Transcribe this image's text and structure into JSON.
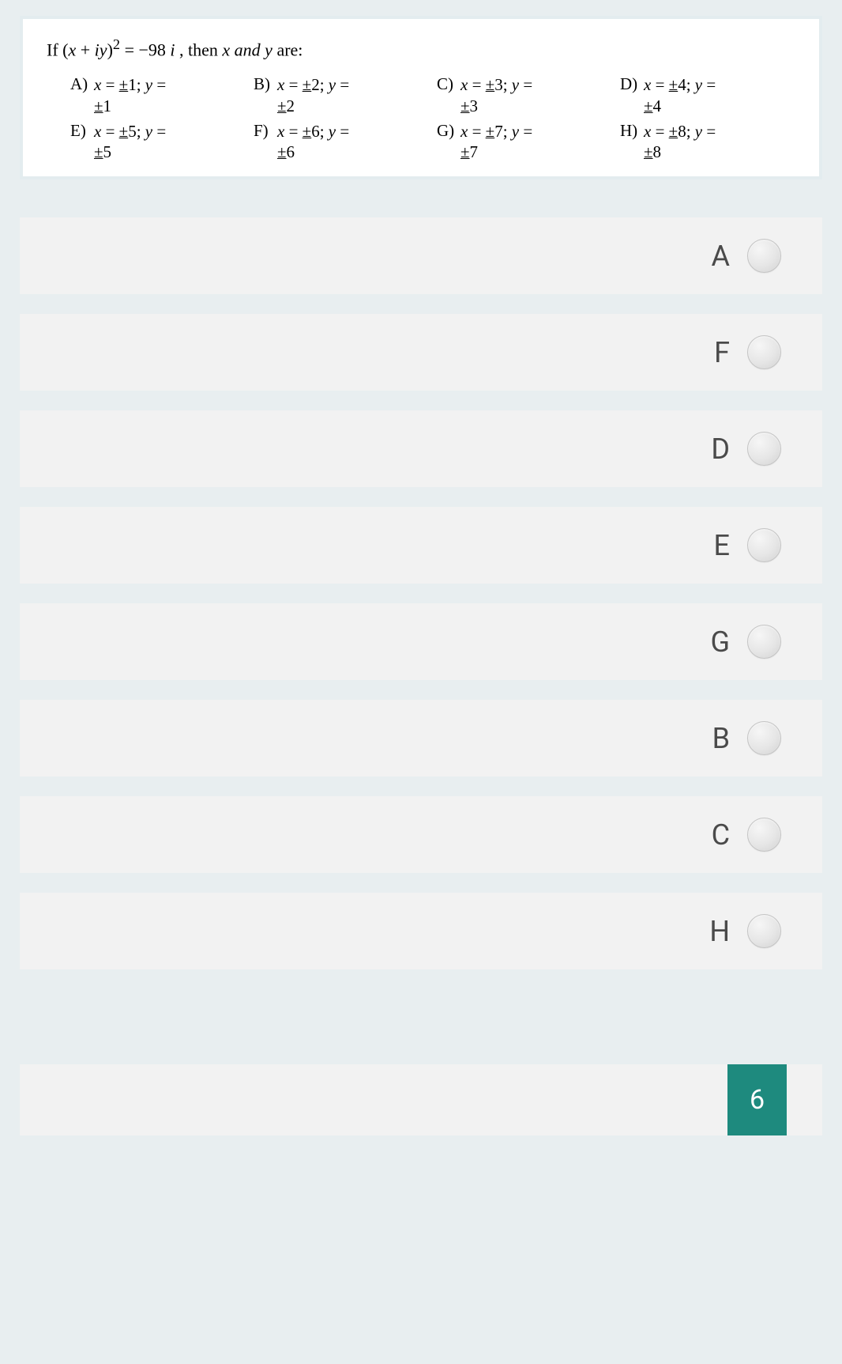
{
  "colors": {
    "page_bg": "#e8eef0",
    "card_bg": "#ffffff",
    "card_border": "#e3ecef",
    "answer_row_bg": "#f2f2f2",
    "answer_label": "#4a4a4a",
    "radio_border": "#c4c4c4",
    "badge_bg": "#1e8a7e",
    "badge_text": "#ffffff",
    "text": "#000000"
  },
  "question": {
    "prefix": "If (",
    "expr_x": "x",
    "expr_plus": " + ",
    "expr_iy": "iy",
    "expr_close": ")",
    "expr_sup": "2",
    "expr_eq": " = −98 ",
    "expr_i": "i",
    "suffix": " , then ",
    "var_x": "x",
    "and": " and ",
    "var_y": "y",
    "tail": " are:"
  },
  "options": [
    {
      "letter": "A)",
      "line1_pre": "x = ",
      "line1_pm": "±",
      "line1_val": "1",
      "line1_post": "; y =",
      "line2_pm": "±",
      "line2_val": "1"
    },
    {
      "letter": "B)",
      "line1_pre": "x = ",
      "line1_pm": "±",
      "line1_val": "2",
      "line1_post": "; y =",
      "line2_pm": "±",
      "line2_val": "2"
    },
    {
      "letter": "C)",
      "line1_pre": "x = ",
      "line1_pm": "±",
      "line1_val": "3",
      "line1_post": "; y =",
      "line2_pm": "±",
      "line2_val": "3"
    },
    {
      "letter": "D)",
      "line1_pre": "x = ",
      "line1_pm": "±",
      "line1_val": "4",
      "line1_post": "; y =",
      "line2_pm": "±",
      "line2_val": "4"
    },
    {
      "letter": "E)",
      "line1_pre": "x = ",
      "line1_pm": "±",
      "line1_val": "5",
      "line1_post": "; y =",
      "line2_pm": "±",
      "line2_val": "5"
    },
    {
      "letter": "F)",
      "line1_pre": "x = ",
      "line1_pm": "±",
      "line1_val": "6",
      "line1_post": "; y =",
      "line2_pm": "±",
      "line2_val": "6"
    },
    {
      "letter": "G)",
      "line1_pre": "x = ",
      "line1_pm": "±",
      "line1_val": "7",
      "line1_post": "; y =",
      "line2_pm": "±",
      "line2_val": "7"
    },
    {
      "letter": "H)",
      "line1_pre": "x = ",
      "line1_pm": "±",
      "line1_val": "8",
      "line1_post": "; y =",
      "line2_pm": "±",
      "line2_val": "8"
    }
  ],
  "answer_choices": [
    {
      "label": "A"
    },
    {
      "label": "F"
    },
    {
      "label": "D"
    },
    {
      "label": "E"
    },
    {
      "label": "G"
    },
    {
      "label": "B"
    },
    {
      "label": "C"
    },
    {
      "label": "H"
    }
  ],
  "page_number": "6"
}
